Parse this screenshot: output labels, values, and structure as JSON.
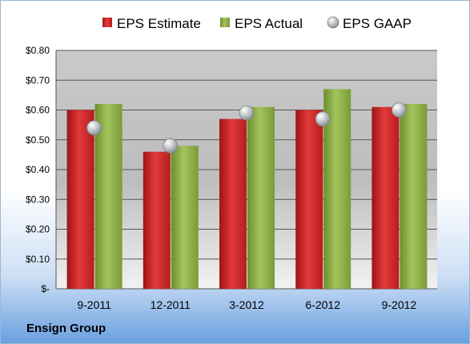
{
  "company": "Ensign Group",
  "chart_data": {
    "type": "bar",
    "categories": [
      "9-2011",
      "12-2011",
      "3-2012",
      "6-2012",
      "9-2012"
    ],
    "series": [
      {
        "name": "EPS Estimate",
        "kind": "bar",
        "color": "#d42a2a",
        "values": [
          0.6,
          0.46,
          0.57,
          0.6,
          0.61
        ]
      },
      {
        "name": "EPS Actual",
        "kind": "bar",
        "color": "#8eb04a",
        "values": [
          0.62,
          0.48,
          0.61,
          0.67,
          0.62
        ]
      },
      {
        "name": "EPS GAAP",
        "kind": "marker",
        "color": "#b4b8bc",
        "values": [
          0.54,
          0.48,
          0.59,
          0.57,
          0.6
        ]
      }
    ],
    "yticks": [
      {
        "v": 0.8,
        "label": "$0.80"
      },
      {
        "v": 0.7,
        "label": "$0.70"
      },
      {
        "v": 0.6,
        "label": "$0.60"
      },
      {
        "v": 0.5,
        "label": "$0.50"
      },
      {
        "v": 0.4,
        "label": "$0.40"
      },
      {
        "v": 0.3,
        "label": "$0.30"
      },
      {
        "v": 0.2,
        "label": "$0.20"
      },
      {
        "v": 0.1,
        "label": "$0.10"
      },
      {
        "v": 0.0,
        "label": "$-"
      }
    ],
    "ylim": [
      0,
      0.8
    ],
    "grid": true,
    "legend_position": "top"
  }
}
